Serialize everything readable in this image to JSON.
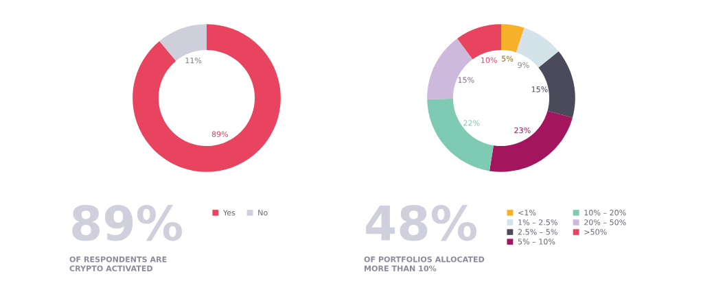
{
  "chart_data": [
    {
      "type": "donut",
      "categories": [
        "Yes",
        "No"
      ],
      "values": [
        89,
        11
      ],
      "colors": [
        "#e8435f",
        "#cfcfdc"
      ],
      "value_labels": [
        "89%",
        "11%"
      ],
      "legend": "bottom",
      "annotations": [
        "89%",
        "OF RESPONDENTS ARE\nCRYPTO ACTIVATED"
      ]
    },
    {
      "type": "donut",
      "categories": [
        "<1%",
        "1% – 2.5%",
        "2.5% – 5%",
        "5% – 10%",
        "10% – 20%",
        "20% – 50%",
        ">50%"
      ],
      "values": [
        5,
        9,
        15,
        23,
        22,
        15,
        10
      ],
      "colors": [
        "#f7b02a",
        "#d4e2ea",
        "#4b4a5a",
        "#a3165f",
        "#7fcab2",
        "#cdb9dc",
        "#e8435f"
      ],
      "value_labels": [
        "5%",
        "9%",
        "15%",
        "23%",
        "22%",
        "15%",
        "10%"
      ],
      "legend": "bottom",
      "annotations": [
        "48%",
        "OF PORTFOLIOS ALLOCATED\nMORE THAN 10%"
      ]
    }
  ]
}
